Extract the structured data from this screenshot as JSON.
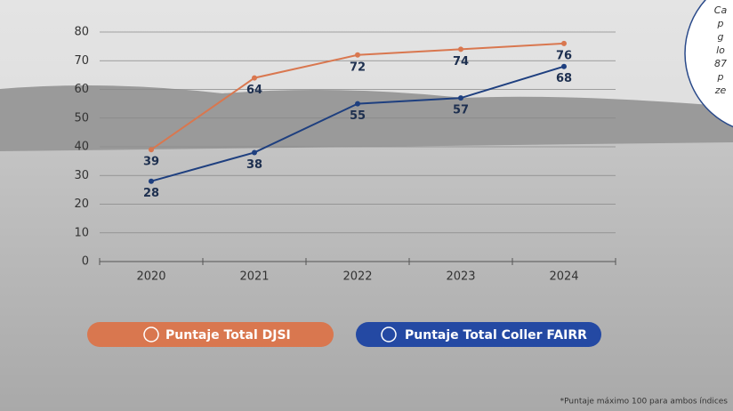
{
  "chart_data": {
    "type": "line",
    "categories": [
      "2020",
      "2021",
      "2022",
      "2023",
      "2024"
    ],
    "series": [
      {
        "name": "Puntaje Total DJSI",
        "color": "#d9774f",
        "values": [
          39,
          64,
          72,
          74,
          76
        ]
      },
      {
        "name": "Puntaje Total Coller FAIRR",
        "color": "#1e3f7f",
        "values": [
          28,
          38,
          55,
          57,
          68
        ]
      }
    ],
    "ylim": [
      0,
      80
    ],
    "yticks": [
      0,
      10,
      20,
      30,
      40,
      50,
      60,
      70,
      80
    ],
    "grid": true,
    "annotation_lines": [
      "Ca",
      "p",
      "g",
      "lo",
      "87",
      "p",
      "ze"
    ],
    "footnote": "*Puntaje máximo 100 para ambos índices"
  }
}
